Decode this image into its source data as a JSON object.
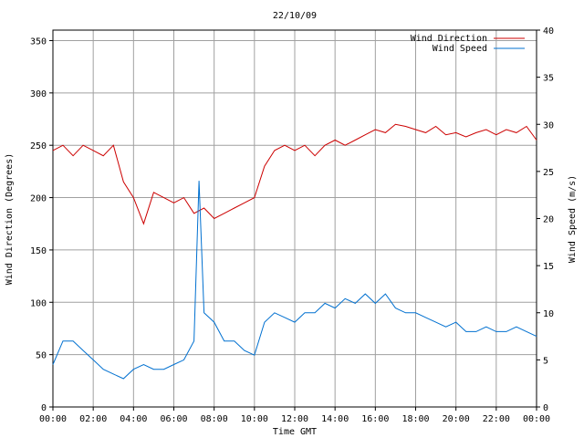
{
  "chart_data": {
    "type": "line",
    "title": "22/10/09",
    "xlabel": "Time GMT",
    "ylabel_left": "Wind Direction (Degrees)",
    "ylabel_right": "Wind Speed (m/s)",
    "x_ticks": [
      "00:00",
      "02:00",
      "04:00",
      "06:00",
      "08:00",
      "10:00",
      "12:00",
      "14:00",
      "16:00",
      "18:00",
      "20:00",
      "22:00",
      "00:00"
    ],
    "y_left_ticks": [
      "0",
      "50",
      "100",
      "150",
      "200",
      "250",
      "300",
      "350"
    ],
    "y_right_ticks": [
      "0",
      "5",
      "10",
      "15",
      "20",
      "25",
      "30",
      "35",
      "40"
    ],
    "x_range_hours": [
      0,
      24
    ],
    "y_left_range": [
      0,
      360
    ],
    "y_right_range": [
      0,
      40
    ],
    "grid": true,
    "legend_position": "top-right",
    "series": [
      {
        "name": "Wind Direction",
        "axis": "left",
        "color": "#cc0000",
        "x": [
          0,
          0.5,
          1,
          1.5,
          2,
          2.5,
          3,
          3.5,
          4,
          4.5,
          5,
          5.5,
          6,
          6.5,
          7,
          7.5,
          8,
          8.5,
          9,
          9.5,
          10,
          10.5,
          11,
          11.5,
          12,
          12.5,
          13,
          13.5,
          14,
          14.5,
          15,
          15.5,
          16,
          16.5,
          17,
          17.5,
          18,
          18.5,
          19,
          19.5,
          20,
          20.5,
          21,
          21.5,
          22,
          22.5,
          23,
          23.5,
          24
        ],
        "values": [
          245,
          250,
          240,
          250,
          245,
          240,
          250,
          215,
          200,
          175,
          205,
          200,
          195,
          200,
          185,
          190,
          180,
          185,
          190,
          195,
          200,
          230,
          245,
          250,
          245,
          250,
          240,
          250,
          255,
          250,
          255,
          260,
          265,
          262,
          270,
          268,
          265,
          262,
          268,
          260,
          262,
          258,
          262,
          265,
          260,
          265,
          262,
          268,
          255
        ]
      },
      {
        "name": "Wind Speed",
        "axis": "right",
        "color": "#0070d0",
        "x": [
          0,
          0.5,
          1,
          1.5,
          2,
          2.5,
          3,
          3.5,
          4,
          4.5,
          5,
          5.5,
          6,
          6.5,
          7,
          7.25,
          7.5,
          8,
          8.5,
          9,
          9.5,
          10,
          10.5,
          11,
          11.5,
          12,
          12.5,
          13,
          13.5,
          14,
          14.5,
          15,
          15.5,
          16,
          16.5,
          17,
          17.5,
          18,
          18.5,
          19,
          19.5,
          20,
          20.5,
          21,
          21.5,
          22,
          22.5,
          23,
          23.5,
          24
        ],
        "values": [
          4.5,
          7,
          7,
          6,
          5,
          4,
          3.5,
          3,
          4,
          4.5,
          4,
          4,
          4.5,
          5,
          7,
          24,
          10,
          9,
          7,
          7,
          6,
          5.5,
          9,
          10,
          9.5,
          9,
          10,
          10,
          11,
          10.5,
          11.5,
          11,
          12,
          11,
          12,
          10.5,
          10,
          10,
          9.5,
          9,
          8.5,
          9,
          8,
          8,
          8.5,
          8,
          8,
          8.5,
          8,
          7.5
        ]
      }
    ]
  }
}
